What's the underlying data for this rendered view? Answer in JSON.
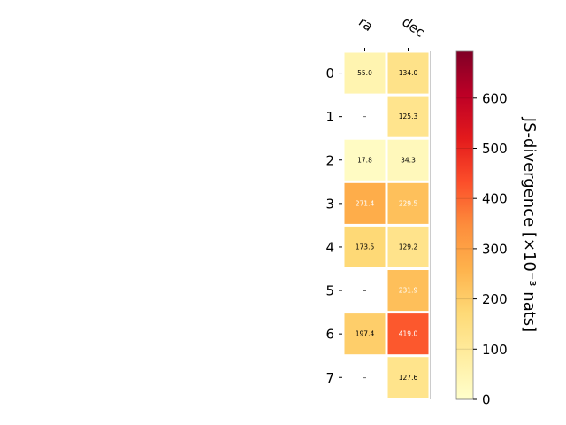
{
  "chart_data": {
    "type": "heatmap",
    "columns": [
      "ra",
      "dec"
    ],
    "rows": [
      "0",
      "1",
      "2",
      "3",
      "4",
      "5",
      "6",
      "7"
    ],
    "values": [
      [
        55.0,
        134.0
      ],
      [
        null,
        125.3
      ],
      [
        17.8,
        34.3
      ],
      [
        271.4,
        229.5
      ],
      [
        173.5,
        129.2
      ],
      [
        null,
        231.9
      ],
      [
        197.4,
        419.0
      ],
      [
        null,
        127.6
      ]
    ],
    "cell_labels": [
      [
        "55.0",
        "134.0"
      ],
      [
        "–",
        "125.3"
      ],
      [
        "17.8",
        "34.3"
      ],
      [
        "271.4",
        "229.5"
      ],
      [
        "173.5",
        "129.2"
      ],
      [
        "–",
        "231.9"
      ],
      [
        "197.4",
        "419.0"
      ],
      [
        "–",
        "127.6"
      ]
    ],
    "colorbar": {
      "label": "JS-divergence [×10⁻³ nats]",
      "ticks": [
        0,
        100,
        200,
        300,
        400,
        500,
        600
      ],
      "tick_labels": [
        "0",
        "100",
        "200",
        "300",
        "400",
        "500",
        "600"
      ],
      "range": [
        0,
        693.1
      ],
      "colormap": "YlOrRd"
    },
    "light_text_threshold": 200
  }
}
